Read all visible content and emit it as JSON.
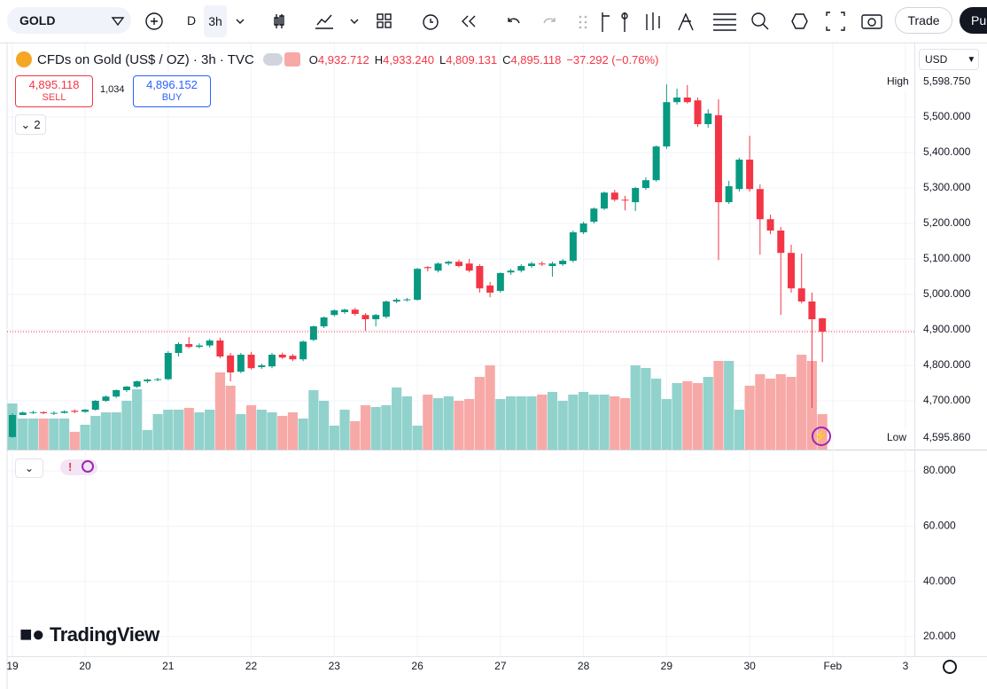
{
  "toolbar": {
    "symbol": "GOLD",
    "intervals": [
      "D",
      "3h"
    ],
    "trade": "Trade",
    "publish": "Pu"
  },
  "legend": {
    "title": "CFDs on Gold (US$ / OZ) · 3h · TVC",
    "o_label": "O",
    "o": "4,932.712",
    "h_label": "H",
    "h": "4,933.240",
    "l_label": "L",
    "l": "4,809.131",
    "c_label": "C",
    "c": "4,895.118",
    "change": "−37.292 (−0.76%)"
  },
  "order": {
    "sell_price": "4,895.118",
    "sell": "SELL",
    "spread": "1,034",
    "buy_price": "4,896.152",
    "buy": "BUY"
  },
  "collapse_count": "2",
  "currency": "USD",
  "watermark": "TradingView",
  "chart_data": {
    "type": "candlestick",
    "categories": [
      "19",
      null,
      null,
      null,
      null,
      null,
      null,
      "20",
      null,
      null,
      null,
      null,
      null,
      null,
      null,
      "21",
      null,
      null,
      null,
      null,
      null,
      null,
      null,
      "22",
      null,
      null,
      null,
      null,
      null,
      null,
      null,
      "23",
      null,
      null,
      null,
      null,
      null,
      null,
      null,
      "26",
      null,
      null,
      null,
      null,
      null,
      null,
      null,
      "27",
      null,
      null,
      null,
      null,
      null,
      null,
      null,
      "28",
      null,
      null,
      null,
      null,
      null,
      null,
      null,
      "29",
      null,
      null,
      null,
      null,
      null,
      null,
      null,
      "30",
      null,
      null,
      null,
      null,
      null,
      null,
      null,
      "Feb",
      null,
      null,
      null,
      null,
      null,
      null,
      "3"
    ],
    "open": [
      4598,
      4660,
      4667,
      4668,
      4665,
      4666,
      4672,
      4669,
      4675,
      4700,
      4712,
      4730,
      4740,
      4755,
      4760,
      4761,
      4835,
      4860,
      4852,
      4856,
      4870,
      4828,
      4782,
      4830,
      4795,
      4797,
      4830,
      4827,
      4817,
      4872,
      4910,
      4942,
      4950,
      4957,
      4942,
      4930,
      4937,
      4980,
      4985,
      4985,
      5077,
      5067,
      5087,
      5092,
      5087,
      5080,
      5025,
      5010,
      5062,
      5067,
      5080,
      5087,
      5080,
      5085,
      5095,
      5175,
      5205,
      5242,
      5287,
      5267,
      5260,
      5300,
      5322,
      5417,
      5542,
      5555,
      5547,
      5480,
      5505,
      5260,
      5297,
      5380,
      5297,
      5212,
      5180,
      5117,
      5017,
      4980,
      4932.712,
      null,
      null,
      null,
      null,
      null,
      null,
      null,
      null
    ],
    "high": [
      4665,
      4670,
      4672,
      4670,
      4670,
      4673,
      4676,
      4677,
      4702,
      4715,
      4732,
      4742,
      4757,
      4762,
      4765,
      4840,
      4865,
      4880,
      4862,
      4875,
      4878,
      4835,
      4835,
      4838,
      4805,
      4835,
      4836,
      4832,
      4870,
      4912,
      4938,
      4958,
      4960,
      4962,
      4947,
      4945,
      4983,
      4990,
      4990,
      5075,
      5080,
      5090,
      5095,
      5098,
      5100,
      5085,
      5035,
      5062,
      5072,
      5085,
      5092,
      5093,
      5092,
      5100,
      5180,
      5205,
      5245,
      5290,
      5295,
      5278,
      5303,
      5330,
      5420,
      5592,
      5580,
      5590,
      5555,
      5522,
      5550,
      5320,
      5385,
      5447,
      5310,
      5225,
      5190,
      5140,
      5115,
      5005,
      4933.24,
      null,
      null,
      null,
      null,
      null,
      null,
      null,
      null
    ],
    "low": [
      4596,
      4660,
      4663,
      4662,
      4660,
      4664,
      4665,
      4666,
      4672,
      4697,
      4708,
      4725,
      4736,
      4750,
      4755,
      4758,
      4825,
      4848,
      4848,
      4850,
      4820,
      4755,
      4778,
      4788,
      4790,
      4792,
      4818,
      4812,
      4812,
      4868,
      4905,
      4938,
      4945,
      4940,
      4897,
      4910,
      4932,
      4975,
      4980,
      4982,
      5065,
      5062,
      5082,
      5076,
      5062,
      5005,
      4992,
      5005,
      5055,
      5062,
      5075,
      5080,
      5050,
      5080,
      5090,
      5170,
      5200,
      5238,
      5262,
      5237,
      5235,
      5295,
      5318,
      5410,
      5535,
      5538,
      5472,
      5470,
      5097,
      5255,
      5290,
      5290,
      5112,
      5170,
      4942,
      5005,
      4975,
      4680,
      4809.131,
      null,
      null,
      null,
      null,
      null,
      null,
      null,
      null
    ],
    "close": [
      4660,
      4667,
      4668,
      4665,
      4666,
      4670,
      4669,
      4675,
      4700,
      4712,
      4730,
      4740,
      4755,
      4760,
      4761,
      4835,
      4860,
      4852,
      4856,
      4870,
      4825,
      4780,
      4830,
      4792,
      4800,
      4830,
      4822,
      4817,
      4867,
      4910,
      4935,
      4955,
      4957,
      4945,
      4930,
      4942,
      4980,
      4985,
      4986,
      5072,
      5074,
      5087,
      5092,
      5080,
      5067,
      5017,
      5005,
      5060,
      5067,
      5080,
      5087,
      5085,
      5087,
      5095,
      5175,
      5200,
      5242,
      5287,
      5267,
      5265,
      5300,
      5322,
      5417,
      5542,
      5555,
      5542,
      5480,
      5510,
      5260,
      5305,
      5380,
      5297,
      5212,
      5180,
      5117,
      5017,
      4980,
      4930,
      4895.118,
      null,
      null,
      null,
      null,
      null,
      null,
      null,
      null
    ],
    "volume": [
      52,
      35,
      35,
      35,
      35,
      35,
      20,
      28,
      38,
      42,
      42,
      55,
      68,
      22,
      40,
      45,
      45,
      47,
      42,
      45,
      87,
      72,
      40,
      50,
      45,
      42,
      38,
      42,
      35,
      67,
      55,
      27,
      45,
      32,
      50,
      48,
      50,
      70,
      60,
      27,
      62,
      58,
      60,
      55,
      57,
      82,
      95,
      57,
      60,
      60,
      60,
      62,
      65,
      55,
      62,
      65,
      62,
      62,
      60,
      58,
      95,
      92,
      80,
      57,
      75,
      77,
      75,
      82,
      100,
      100,
      45,
      72,
      85,
      80,
      85,
      82,
      107,
      100,
      40,
      null,
      null,
      null,
      null,
      null,
      null,
      null,
      null
    ],
    "up_color": "#089981",
    "down_color": "#f23645",
    "volume_up_color": "#92d2cc",
    "volume_down_color": "#f7a9a7",
    "ylim": [
      4562.5,
      5705
    ],
    "yticks": [
      {
        "value": 4700,
        "label": "4,700.000"
      },
      {
        "value": 4800,
        "label": "4,800.000"
      },
      {
        "value": 4900,
        "label": "4,900.000"
      },
      {
        "value": 5000,
        "label": "5,000.000"
      },
      {
        "value": 5100,
        "label": "5,100.000"
      },
      {
        "value": 5200,
        "label": "5,200.000"
      },
      {
        "value": 5300,
        "label": "5,300.000"
      },
      {
        "value": 5400,
        "label": "5,400.000"
      },
      {
        "value": 5500,
        "label": "5,500.000"
      }
    ],
    "y2lim": [
      12.9,
      87.4
    ],
    "y2ticks": [
      {
        "value": 20,
        "label": "20.000"
      },
      {
        "value": 40,
        "label": "40.000"
      },
      {
        "value": 60,
        "label": "60.000"
      },
      {
        "value": 80,
        "label": "80.000"
      }
    ],
    "high_marker": {
      "label": "High",
      "value": 5598.75,
      "value_label": "5,598.750"
    },
    "low_marker": {
      "label": "Low",
      "value": 4595.86,
      "value_label": "4,595.860"
    },
    "grid": true
  }
}
